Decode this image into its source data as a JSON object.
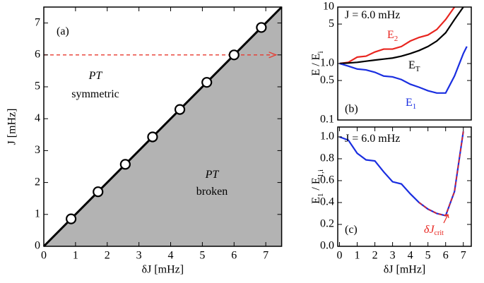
{
  "chart_data": [
    {
      "type": "scatter",
      "xlabel": "δJ [mHz]",
      "ylabel": "J [mHz]",
      "xlim": [
        0,
        7.5
      ],
      "ylim": [
        0,
        7.5
      ],
      "xticks": [
        0,
        1,
        2,
        3,
        4,
        5,
        6,
        7
      ],
      "yticks": [
        0,
        1,
        2,
        3,
        4,
        5,
        6,
        7
      ],
      "shade_color": "#b3b3b3",
      "boundary": {
        "x": [
          0,
          7.5
        ],
        "values": [
          0,
          7.5
        ],
        "color": "#000000"
      },
      "series": [
        {
          "x": [
            0.86,
            1.71,
            2.57,
            3.43,
            4.29,
            5.14,
            6.0,
            6.86
          ],
          "values": [
            0.86,
            1.71,
            2.57,
            3.43,
            4.29,
            5.14,
            6.0,
            6.86
          ],
          "color": "#000000"
        }
      ],
      "reference_line": {
        "y": 6,
        "color": "#e8392f"
      },
      "annotations": [
        {
          "text": "(a)"
        },
        {
          "text": "PT",
          "style": "italic"
        },
        {
          "text": "symmetric"
        },
        {
          "text": "PT",
          "style": "italic"
        },
        {
          "text": "broken"
        }
      ]
    },
    {
      "type": "line",
      "log_y": true,
      "ylabel": [
        {
          "text": "E / E"
        },
        {
          "text": "i",
          "sub": true
        }
      ],
      "xlim": [
        -0.1,
        7.45
      ],
      "ylim": [
        0.1,
        10
      ],
      "yticks": [
        {
          "value": 0.1,
          "label": "0.1"
        },
        0.5,
        {
          "value": 1,
          "label": "1.0"
        },
        5,
        10
      ],
      "x": [
        0,
        0.5,
        1,
        1.5,
        2,
        2.5,
        3,
        3.5,
        4,
        4.5,
        5,
        5.5,
        6,
        6.5,
        7,
        7.2
      ],
      "series": [
        {
          "name": "E",
          "sub": "2",
          "color": "#e8251f",
          "values": [
            1.0,
            1.05,
            1.3,
            1.35,
            1.6,
            1.8,
            1.8,
            2.0,
            2.5,
            2.9,
            3.2,
            4.0,
            6.0,
            10,
            null,
            null
          ]
        },
        {
          "name": "E",
          "sub": "T",
          "color": "#000000",
          "values": [
            1.0,
            1.02,
            1.05,
            1.1,
            1.15,
            1.2,
            1.25,
            1.35,
            1.5,
            1.7,
            2.0,
            2.5,
            3.5,
            6.0,
            10,
            null
          ]
        },
        {
          "name": "E",
          "sub": "1",
          "color": "#1a2ee0",
          "values": [
            1.0,
            0.9,
            0.8,
            0.77,
            0.7,
            0.6,
            0.58,
            0.52,
            0.43,
            0.38,
            0.33,
            0.3,
            0.3,
            0.6,
            1.5,
            2.0
          ]
        }
      ],
      "annotations": [
        {
          "text": "J = 6.0 mHz"
        },
        {
          "text": "(b)"
        }
      ]
    },
    {
      "type": "line",
      "xlabel": "δJ [mHz]",
      "ylabel": [
        {
          "text": "E"
        },
        {
          "text": "1",
          "sub": true
        },
        {
          "text": " / E"
        },
        {
          "text": "1,i",
          "sub": true
        }
      ],
      "xlim": [
        -0.1,
        7.45
      ],
      "ylim": [
        0,
        1.09
      ],
      "xticks": [
        0,
        1,
        2,
        3,
        4,
        5,
        6,
        7
      ],
      "yticks": [
        {
          "value": 0,
          "label": "0.0"
        },
        0.2,
        0.4,
        0.6,
        0.8,
        {
          "value": 1,
          "label": "1.0"
        }
      ],
      "x": [
        0,
        0.5,
        1,
        1.5,
        2,
        2.5,
        3,
        3.5,
        4,
        4.5,
        5,
        5.5,
        6,
        6.5,
        7
      ],
      "series": [
        {
          "color": "#1a2ee0",
          "values": [
            1.0,
            0.97,
            0.85,
            0.79,
            0.78,
            0.68,
            0.59,
            0.57,
            0.48,
            0.4,
            0.34,
            0.3,
            0.28,
            0.5,
            1.05
          ]
        },
        {
          "color": "#e8251f",
          "dashed": true,
          "values": [
            null,
            null,
            null,
            null,
            null,
            null,
            null,
            null,
            null,
            0.4,
            0.34,
            0.3,
            0.28,
            0.5,
            1.05
          ]
        }
      ],
      "annotations": [
        {
          "text": "J = 6.0 mHz"
        },
        {
          "text": "(c)"
        },
        {
          "text": "δJ",
          "sub": "crit",
          "style": "italic",
          "color": "#e8251f"
        }
      ]
    }
  ]
}
